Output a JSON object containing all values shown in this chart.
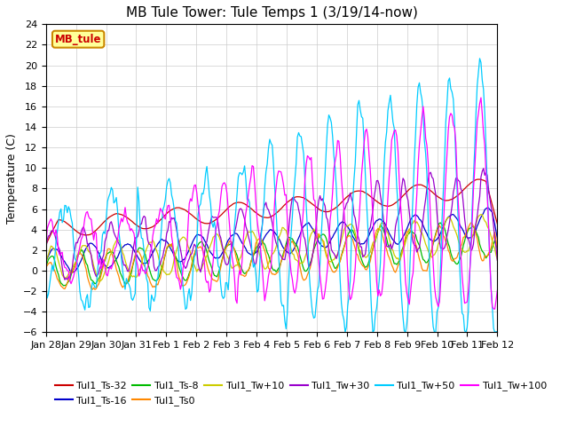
{
  "title": "MB Tule Tower: Tule Temps 1 (3/19/14-now)",
  "ylabel": "Temperature (C)",
  "ylim": [
    -6,
    24
  ],
  "yticks": [
    -6,
    -4,
    -2,
    0,
    2,
    4,
    6,
    8,
    10,
    12,
    14,
    16,
    18,
    20,
    22,
    24
  ],
  "xtick_labels": [
    "Jan 28",
    "Jan 29",
    "Jan 30",
    "Jan 31",
    "Feb 1",
    "Feb 2",
    "Feb 3",
    "Feb 4",
    "Feb 5",
    "Feb 6",
    "Feb 7",
    "Feb 8",
    "Feb 9",
    "Feb 10",
    "Feb 11",
    "Feb 12"
  ],
  "series_colors": {
    "Tul1_Ts-32": "#cc0000",
    "Tul1_Ts-16": "#0000cc",
    "Tul1_Ts-8": "#00bb00",
    "Tul1_Ts0": "#ff8800",
    "Tul1_Tw+10": "#cccc00",
    "Tul1_Tw+30": "#9900cc",
    "Tul1_Tw+50": "#00ccff",
    "Tul1_Tw+100": "#ff00ff"
  },
  "legend_box_color": "#ffff99",
  "legend_box_edge": "#cc8800",
  "legend_text": "MB_tule",
  "background_color": "#ffffff",
  "grid_color": "#cccccc",
  "title_fontsize": 11,
  "tick_fontsize": 8,
  "legend_fontsize": 8,
  "figsize": [
    6.4,
    4.8
  ],
  "dpi": 100
}
